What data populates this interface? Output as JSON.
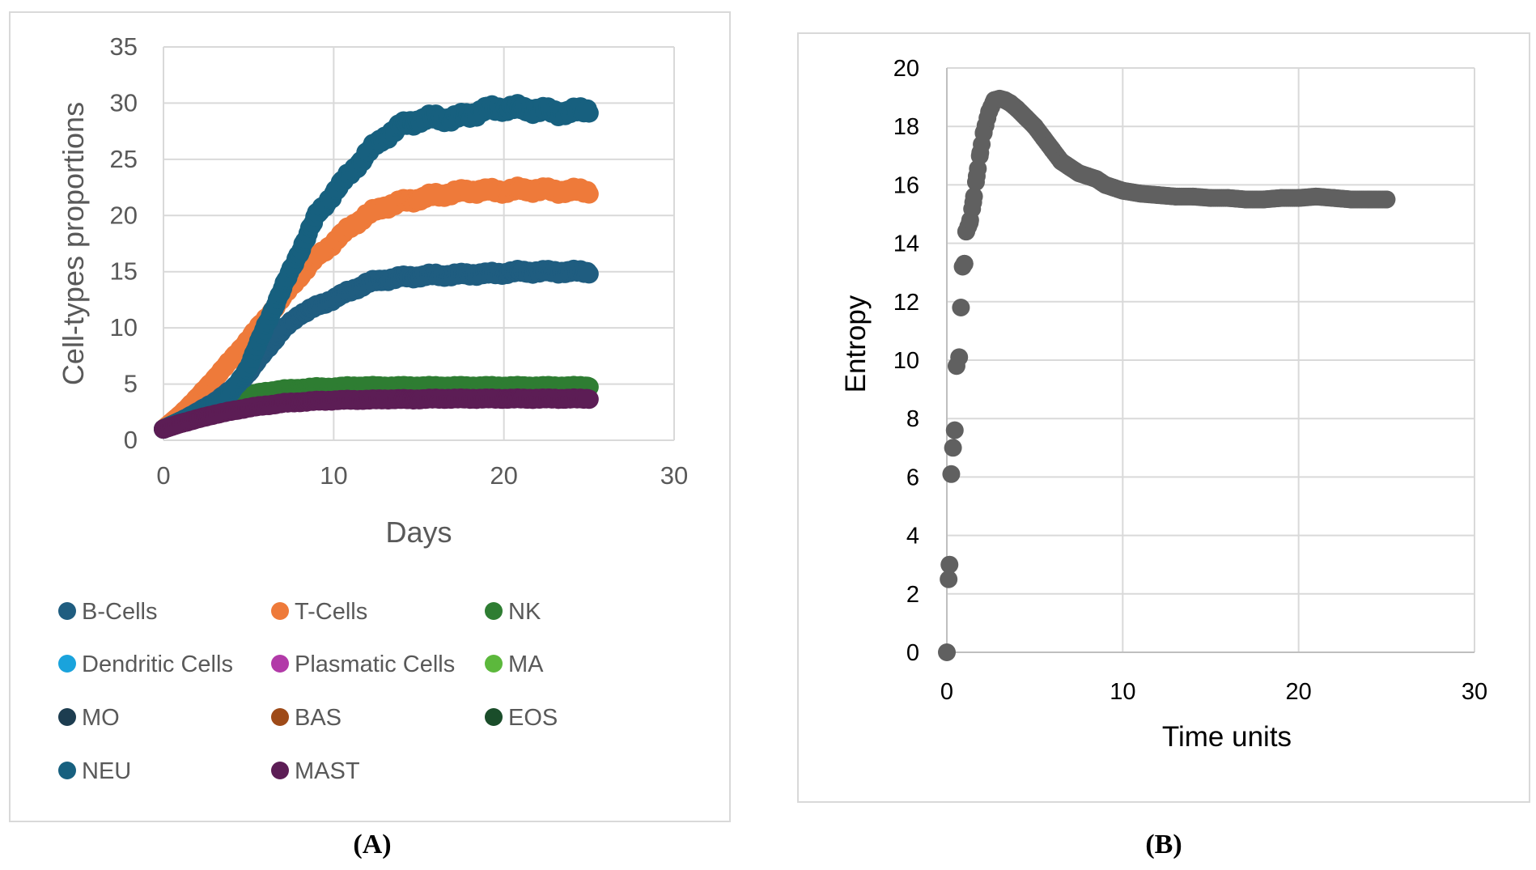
{
  "colors": {
    "b_cells": "#1f5d80",
    "t_cells": "#ee7a3a",
    "nk": "#2e7d32",
    "dendritic": "#1aa3dc",
    "plasmatic": "#b23aa8",
    "ma": "#5cb83c",
    "mo": "#1d3d50",
    "bas": "#9e4a18",
    "eos": "#1a4d2a",
    "neu": "#17607f",
    "mast": "#5c1d55",
    "entropy": "#606060",
    "grid": "#d9d9d9",
    "axis_text": "#595959"
  },
  "captions": {
    "a": "(A)",
    "b": "(B)"
  },
  "chart_data": [
    {
      "type": "scatter",
      "xlabel": "Days",
      "ylabel": "Cell-types proportions",
      "xlim": [
        0,
        30
      ],
      "ylim": [
        0,
        35
      ],
      "xticks": [
        "0",
        "10",
        "20",
        "30"
      ],
      "yticks": [
        "0",
        "5",
        "10",
        "15",
        "20",
        "25",
        "30",
        "35"
      ],
      "grid": true,
      "legend_position": "bottom",
      "legend": [
        "B-Cells",
        "T-Cells",
        "NK",
        "Dendritic Cells",
        "Plasmatic Cells",
        "MA",
        "MO",
        "BAS",
        "EOS",
        "NEU",
        "MAST"
      ],
      "series": [
        {
          "name": "B-Cells",
          "color_key": "b_cells",
          "x": [
            0,
            1,
            2,
            3,
            4,
            5,
            6,
            7,
            8,
            9,
            10,
            11,
            12,
            13,
            14,
            15,
            16,
            17,
            18,
            19,
            20,
            21,
            22,
            23,
            24,
            25
          ],
          "y": [
            1.0,
            1.7,
            2.5,
            3.4,
            4.5,
            6.0,
            8.0,
            9.8,
            11.2,
            11.9,
            12.6,
            13.3,
            14.0,
            14.3,
            14.5,
            14.6,
            14.7,
            14.7,
            14.8,
            14.8,
            14.9,
            15.0,
            15.0,
            15.0,
            15.0,
            15.0
          ]
        },
        {
          "name": "T-Cells",
          "color_key": "t_cells",
          "x": [
            0,
            1,
            2,
            3,
            4,
            5,
            6,
            7,
            8,
            9,
            10,
            11,
            12,
            13,
            14,
            15,
            16,
            17,
            18,
            19,
            20,
            21,
            22,
            23,
            24,
            25
          ],
          "y": [
            1.0,
            2.3,
            3.8,
            5.5,
            7.2,
            9.0,
            10.8,
            12.7,
            14.6,
            16.3,
            17.6,
            19.0,
            20.1,
            20.8,
            21.2,
            21.5,
            21.8,
            22.0,
            22.2,
            22.2,
            22.2,
            22.3,
            22.3,
            22.2,
            22.2,
            22.2
          ]
        },
        {
          "name": "NK",
          "color_key": "nk",
          "x": [
            0,
            1,
            2,
            3,
            4,
            5,
            6,
            7,
            8,
            9,
            10,
            11,
            12,
            13,
            14,
            15,
            16,
            17,
            18,
            19,
            20,
            21,
            22,
            23,
            24,
            25
          ],
          "y": [
            1.0,
            1.8,
            2.5,
            3.1,
            3.6,
            4.0,
            4.3,
            4.5,
            4.6,
            4.7,
            4.7,
            4.8,
            4.8,
            4.8,
            4.8,
            4.8,
            4.8,
            4.8,
            4.8,
            4.8,
            4.8,
            4.8,
            4.8,
            4.8,
            4.8,
            4.8
          ]
        },
        {
          "name": "NEU",
          "color_key": "neu",
          "x": [
            0,
            1,
            2,
            3,
            4,
            5,
            6,
            7,
            8,
            9,
            10,
            11,
            12,
            13,
            14,
            15,
            16,
            17,
            18,
            19,
            20,
            21,
            22,
            23,
            24,
            25
          ],
          "y": [
            1.0,
            1.7,
            2.4,
            3.2,
            4.3,
            6.5,
            10.2,
            13.5,
            16.8,
            20.0,
            22.0,
            23.8,
            25.6,
            27.0,
            28.0,
            28.5,
            28.7,
            28.6,
            29.0,
            29.4,
            29.6,
            29.5,
            29.4,
            29.2,
            29.2,
            29.5
          ]
        },
        {
          "name": "MAST",
          "color_key": "mast",
          "x": [
            0,
            1,
            2,
            3,
            4,
            5,
            6,
            7,
            8,
            9,
            10,
            11,
            12,
            13,
            14,
            15,
            16,
            17,
            18,
            19,
            20,
            21,
            22,
            23,
            24,
            25
          ],
          "y": [
            1.0,
            1.5,
            1.9,
            2.3,
            2.6,
            2.9,
            3.1,
            3.3,
            3.4,
            3.5,
            3.55,
            3.6,
            3.6,
            3.65,
            3.65,
            3.65,
            3.7,
            3.7,
            3.7,
            3.7,
            3.7,
            3.7,
            3.7,
            3.7,
            3.7,
            3.7
          ]
        }
      ]
    },
    {
      "type": "scatter",
      "xlabel": "Time units",
      "ylabel": "Entropy",
      "xlim": [
        0,
        30
      ],
      "ylim": [
        0,
        20
      ],
      "xticks": [
        "0",
        "10",
        "20",
        "30"
      ],
      "yticks": [
        "0",
        "2",
        "4",
        "6",
        "8",
        "10",
        "12",
        "14",
        "16",
        "18",
        "20"
      ],
      "grid": true,
      "series": [
        {
          "name": "",
          "color_key": "entropy",
          "x": [
            0,
            0.1,
            0.15,
            0.25,
            0.35,
            0.45,
            0.55,
            0.7,
            0.8,
            0.9,
            1.0,
            1.1,
            1.3,
            1.5,
            1.7,
            1.9,
            2.1,
            2.4,
            2.7,
            3.0,
            3.3,
            3.6,
            4.0,
            4.5,
            5.0,
            5.5,
            6.0,
            6.5,
            7.0,
            7.5,
            8.0,
            8.5,
            9.0,
            9.5,
            10.0,
            11.0,
            12.0,
            13.0,
            14.0,
            15.0,
            16.0,
            17.0,
            18.0,
            19.0,
            20.0,
            21.0,
            22.0,
            23.0,
            24.0,
            25.0
          ],
          "y": [
            0,
            2.5,
            3.0,
            6.1,
            7.0,
            7.6,
            9.8,
            10.1,
            11.8,
            13.2,
            13.3,
            14.4,
            14.7,
            15.4,
            16.3,
            17.1,
            17.8,
            18.5,
            18.9,
            18.95,
            18.9,
            18.8,
            18.6,
            18.3,
            18.0,
            17.6,
            17.2,
            16.8,
            16.6,
            16.4,
            16.3,
            16.2,
            16.0,
            15.9,
            15.8,
            15.7,
            15.65,
            15.6,
            15.6,
            15.55,
            15.55,
            15.5,
            15.5,
            15.55,
            15.55,
            15.6,
            15.55,
            15.5,
            15.5,
            15.5
          ]
        }
      ]
    }
  ]
}
